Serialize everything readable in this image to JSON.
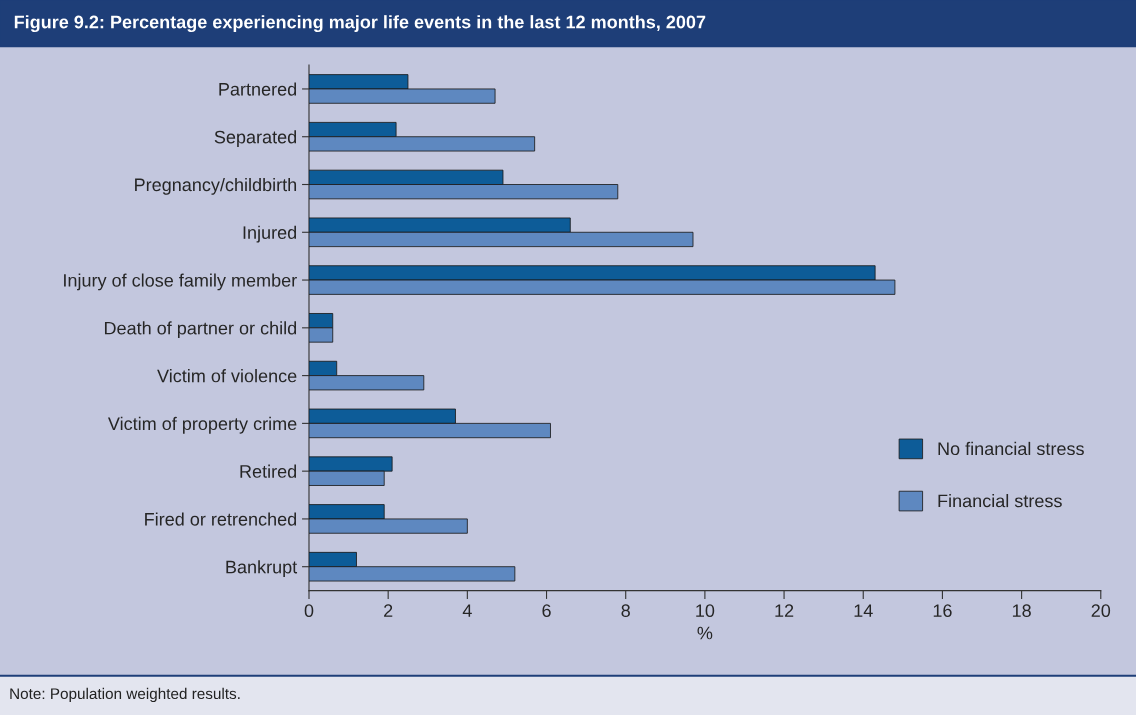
{
  "chart_data": {
    "type": "bar",
    "orientation": "horizontal",
    "title": "Figure 9.2: Percentage experiencing major life events in the last 12 months, 2007",
    "xlabel": "%",
    "categories": [
      "Partnered",
      "Separated",
      "Pregnancy/childbirth",
      "Injured",
      "Injury of close family member",
      "Death of partner or child",
      "Victim of violence",
      "Victim of property crime",
      "Retired",
      "Fired or retrenched",
      "Bankrupt"
    ],
    "series": [
      {
        "name": "No financial stress",
        "color": "#0d5c98",
        "values": [
          2.5,
          2.2,
          4.9,
          6.6,
          14.3,
          0.6,
          0.7,
          3.7,
          2.1,
          1.9,
          1.2
        ]
      },
      {
        "name": "Financial stress",
        "color": "#5e88c0",
        "values": [
          4.7,
          5.7,
          7.8,
          9.7,
          14.8,
          0.6,
          2.9,
          6.1,
          1.9,
          4.0,
          5.2
        ]
      }
    ],
    "xlim": [
      0,
      20
    ],
    "xticks": [
      0,
      2,
      4,
      6,
      8,
      10,
      12,
      14,
      16,
      18,
      20
    ],
    "grid": false,
    "legend": "right",
    "annotations": [
      "Note: Population weighted results."
    ]
  }
}
